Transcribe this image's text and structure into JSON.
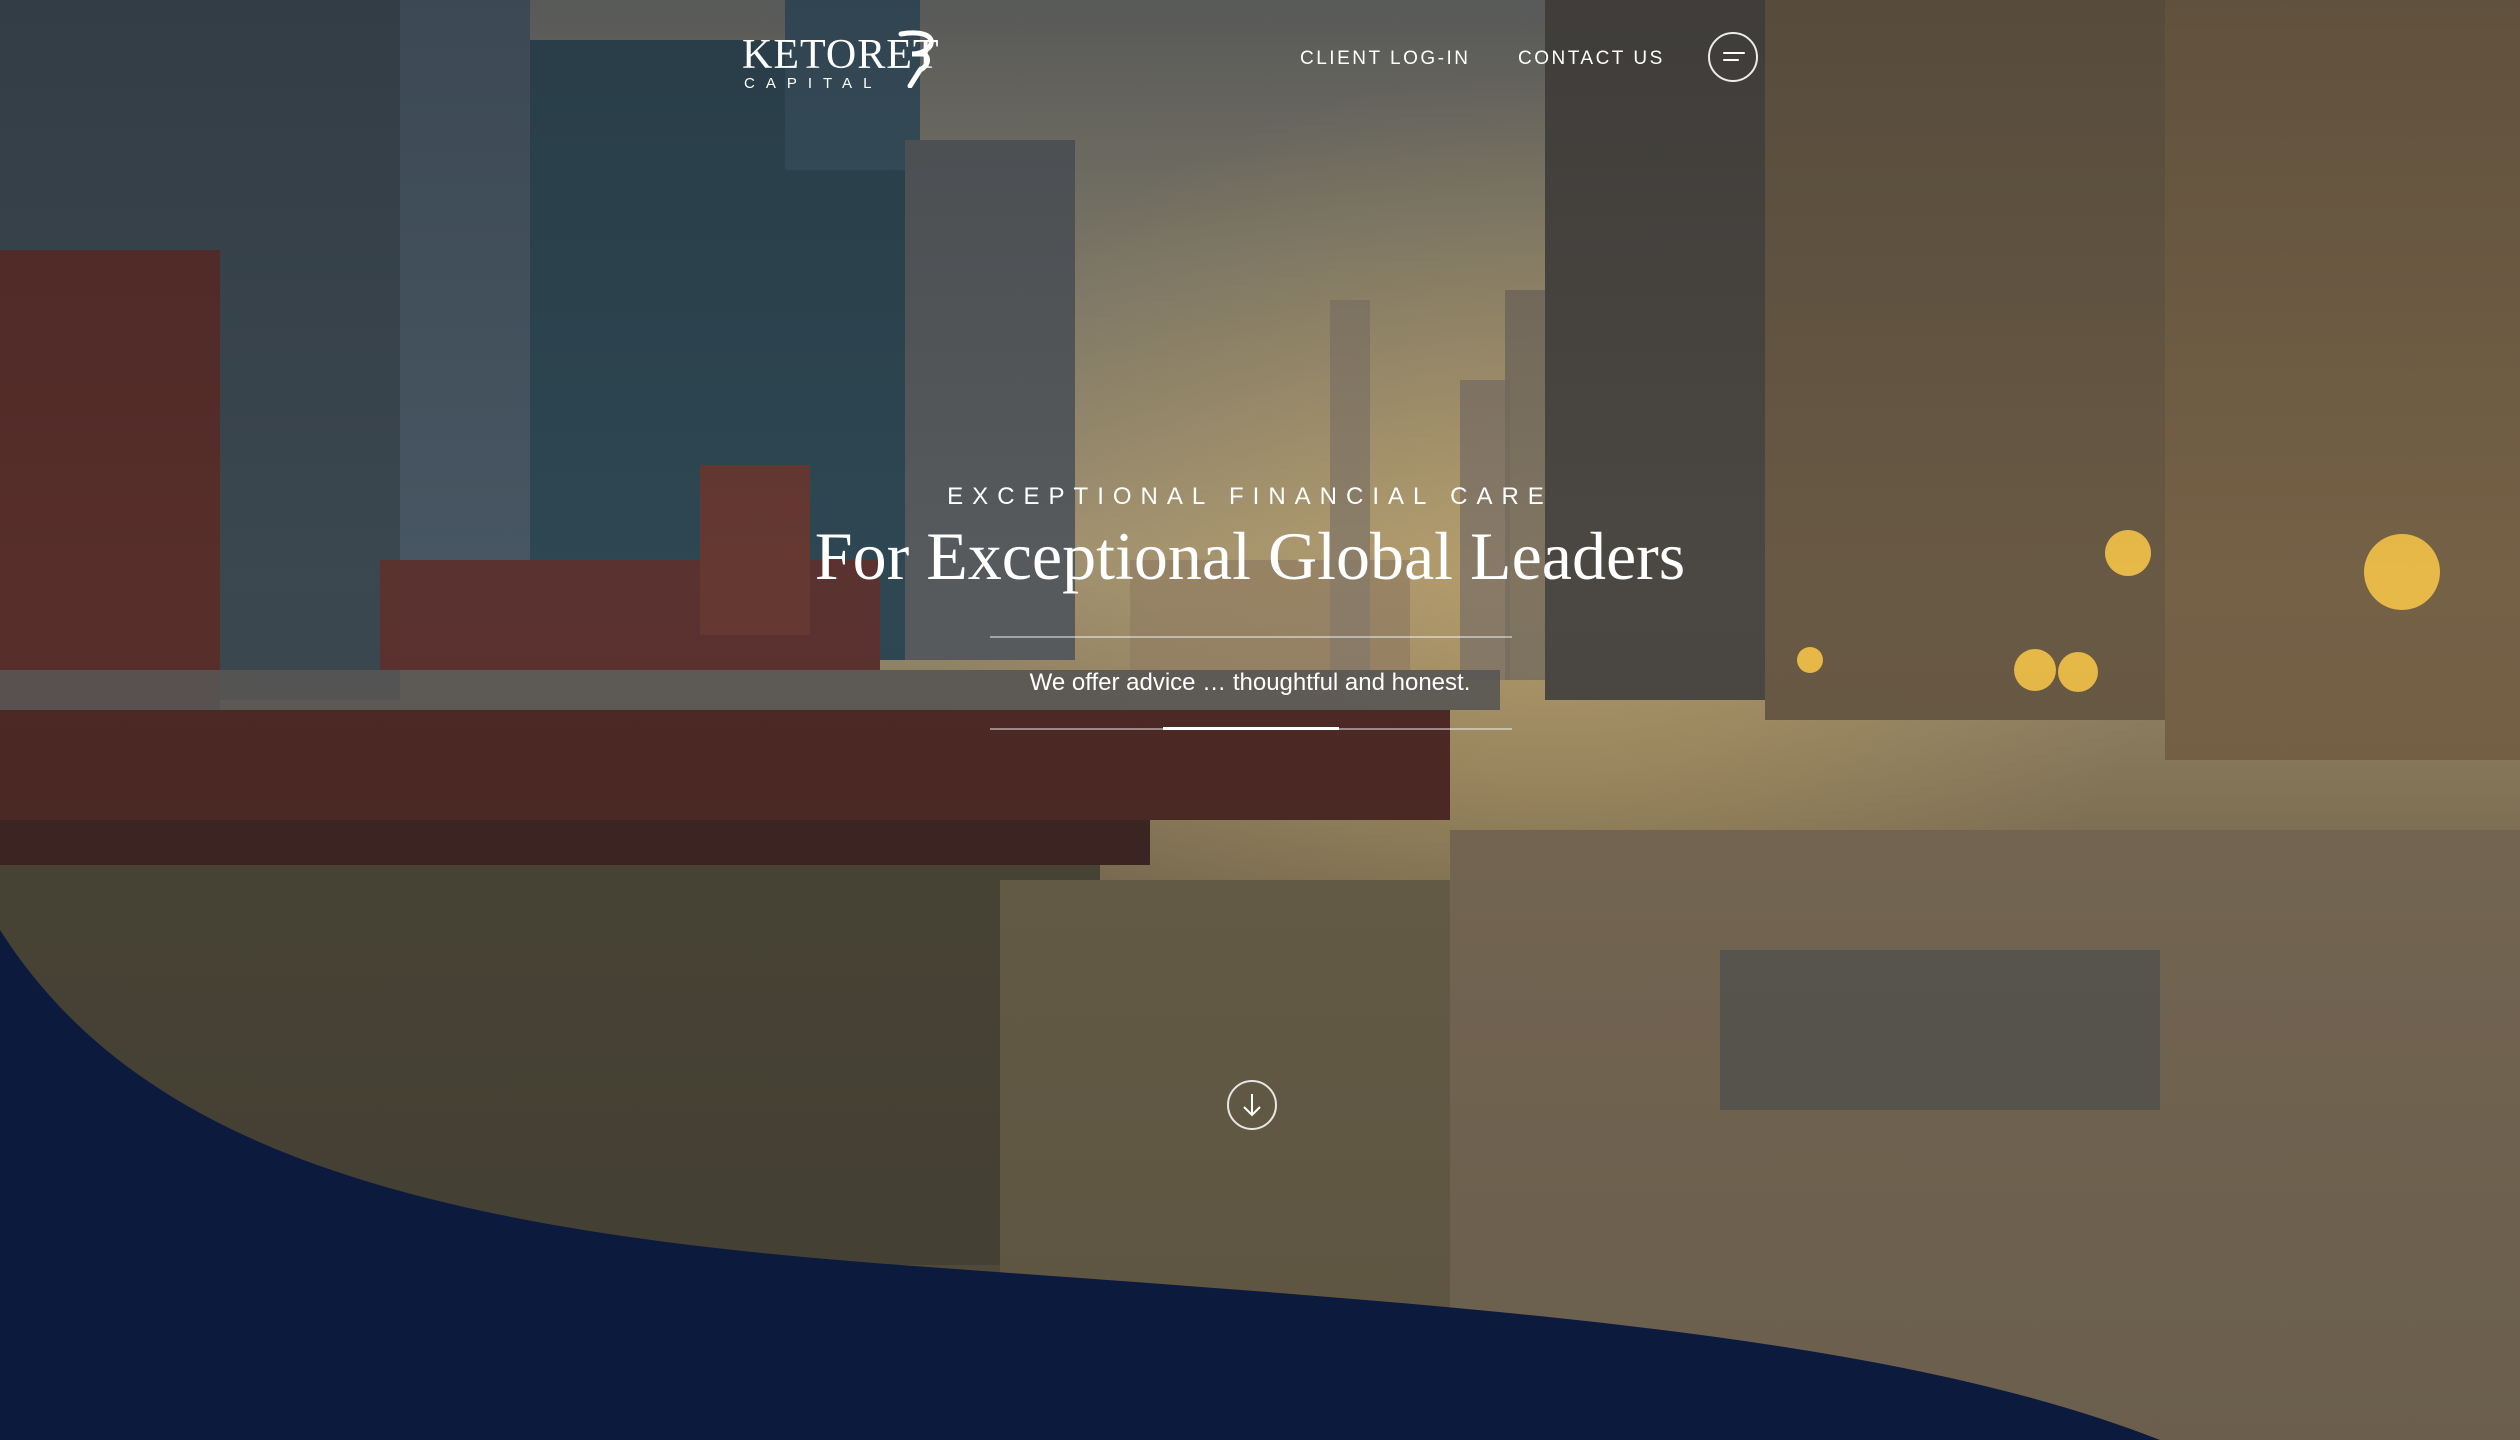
{
  "header": {
    "logo": {
      "name": "KETORET",
      "subtitle": "CAPITAL",
      "icon": "ketoret-logo-mark-icon"
    },
    "nav": [
      {
        "label": "CLIENT LOG-IN"
      },
      {
        "label": "CONTACT US"
      }
    ],
    "menu_icon": "hamburger-menu-icon"
  },
  "hero": {
    "eyebrow": "EXCEPTIONAL FINANCIAL CARE",
    "headline": "For Exceptional Global Leaders",
    "tagline": "We offer advice … thoughtful and honest.",
    "scroll_icon": "arrow-down-circle-icon"
  },
  "colors": {
    "navy": "#0b1a3d",
    "text": "#ffffff"
  }
}
